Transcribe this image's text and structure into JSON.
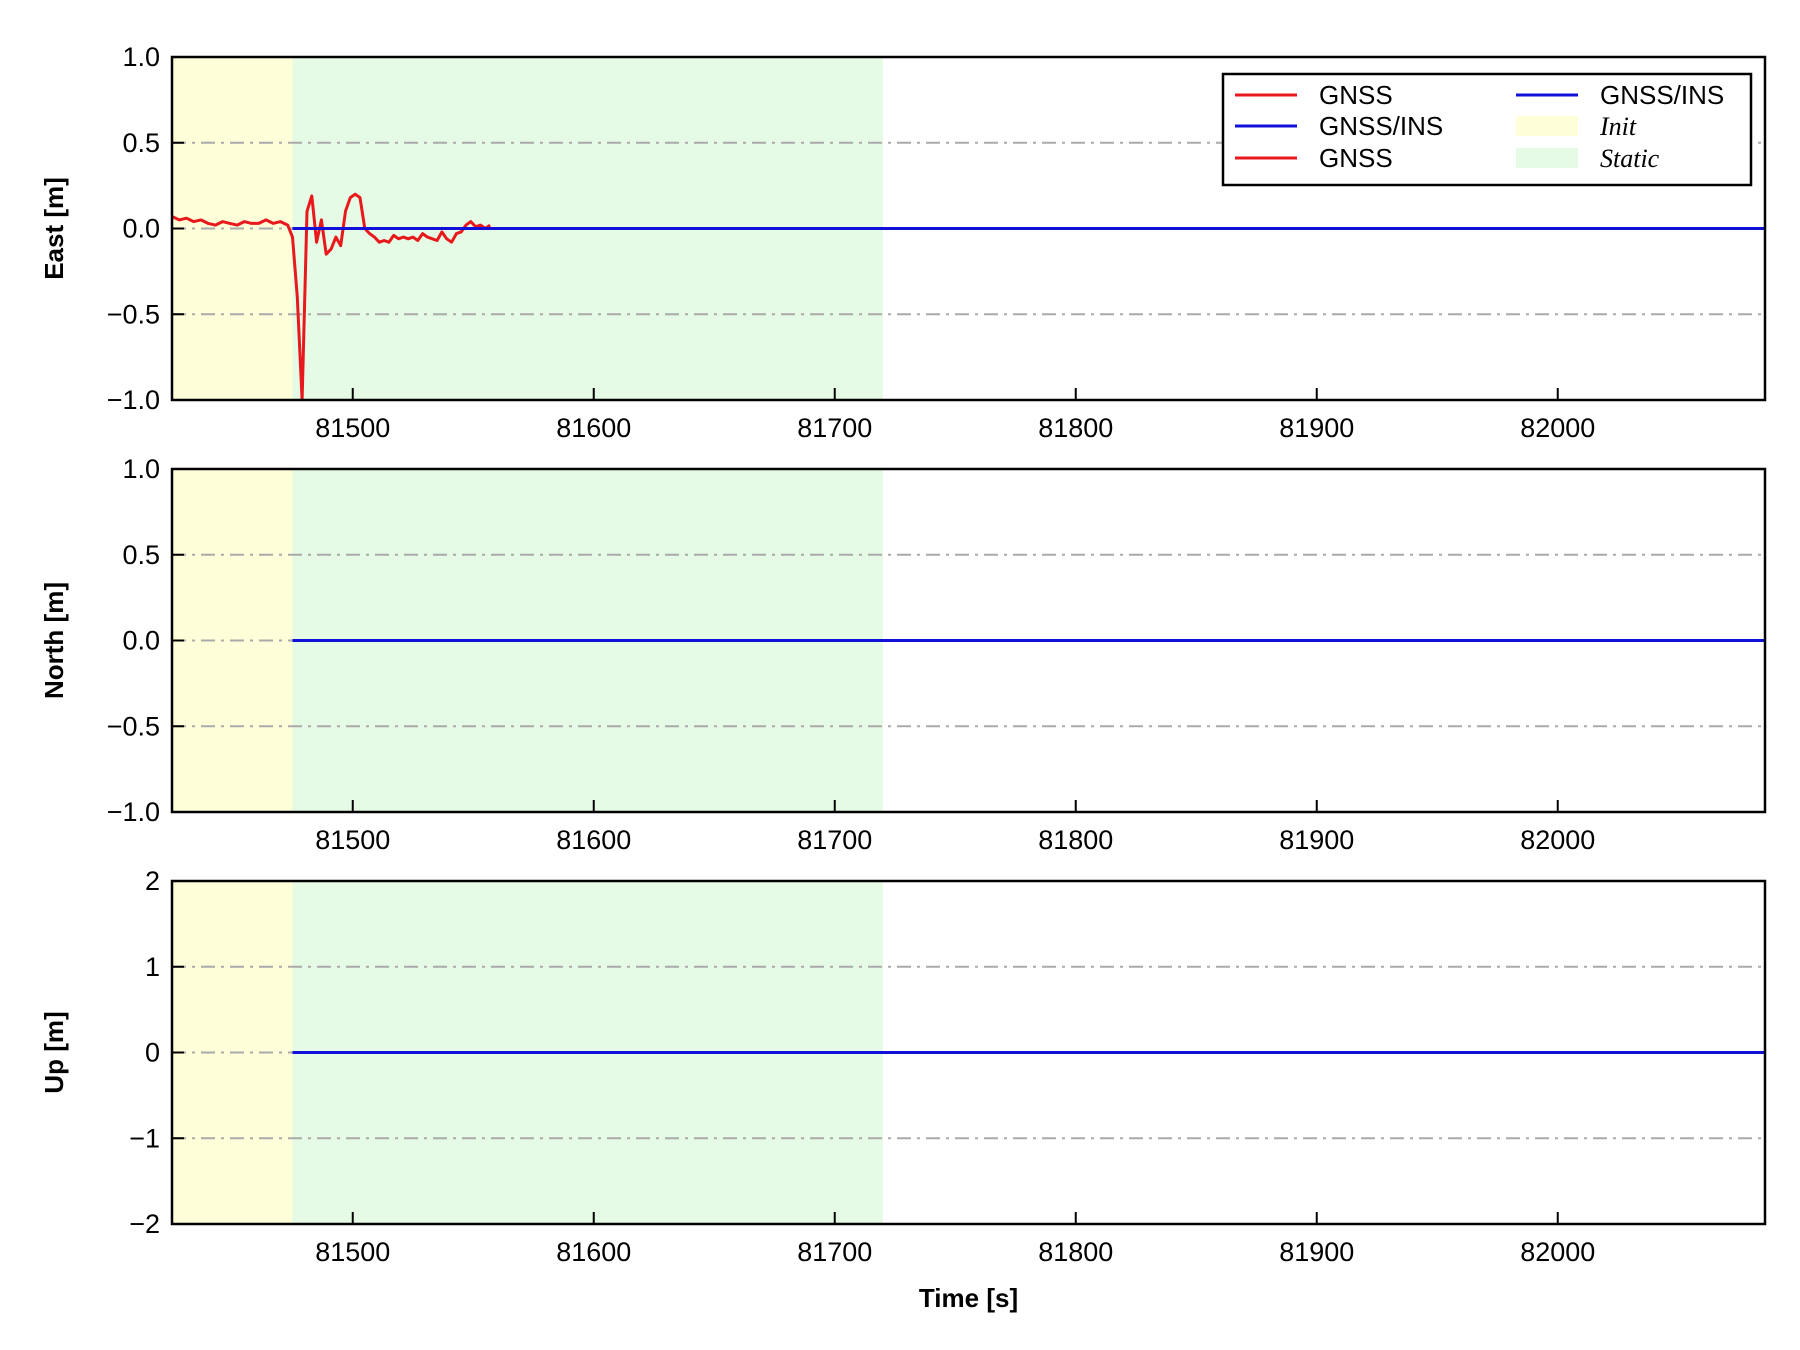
{
  "colors": {
    "gnss": "#e8191c",
    "gnss_ins": "#1010d8",
    "init_region": "#fefed9",
    "static_region": "#e6fbe6",
    "grid": "#aaaaaa",
    "axes": "#000000"
  },
  "legend": {
    "placement": "upper-right of top panel",
    "columns": 2,
    "entries": [
      {
        "label": "GNSS",
        "kind": "line",
        "color": "#e8191c",
        "style": "normal"
      },
      {
        "label": "GNSS/INS",
        "kind": "line",
        "color": "#1010d8",
        "style": "normal"
      },
      {
        "label": "GNSS",
        "kind": "line",
        "color": "#e8191c",
        "style": "normal"
      },
      {
        "label": "GNSS/INS",
        "kind": "line",
        "color": "#1010d8",
        "style": "normal"
      },
      {
        "label": "Init",
        "kind": "patch",
        "color": "#fefed9",
        "style": "italic"
      },
      {
        "label": "Static",
        "kind": "patch",
        "color": "#e6fbe6",
        "style": "italic"
      }
    ]
  },
  "chart_data": [
    {
      "type": "line",
      "ylabel": "East [m]",
      "xlabel": "",
      "xlim": [
        81425,
        82086
      ],
      "ylim": [
        -1.0,
        1.0
      ],
      "xticks": [
        81500,
        81600,
        81700,
        81800,
        81900,
        82000
      ],
      "xtick_labels": [
        "81500",
        "81600",
        "81700",
        "81800",
        "81900",
        "82000"
      ],
      "yticks": [
        -1.0,
        -0.5,
        0.0,
        0.5,
        1.0
      ],
      "ytick_labels": [
        "−1.0",
        "−0.5",
        "0.0",
        "0.5",
        "1.0"
      ],
      "grid_y": [
        -0.5,
        0.0,
        0.5
      ],
      "regions": [
        {
          "name": "Init",
          "x": [
            81425,
            81475
          ]
        },
        {
          "name": "Static",
          "x": [
            81475,
            81720
          ]
        }
      ],
      "series": [
        {
          "name": "GNSS",
          "color": "#e8191c",
          "x": [
            81425,
            81428,
            81431,
            81434,
            81437,
            81440,
            81443,
            81446,
            81449,
            81452,
            81455,
            81458,
            81461,
            81464,
            81467,
            81470,
            81473,
            81475,
            81477,
            81479,
            81481,
            81483,
            81485,
            81487,
            81489,
            81491,
            81493,
            81495,
            81497,
            81499,
            81501,
            81503,
            81505,
            81507,
            81509,
            81511,
            81513,
            81515,
            81517,
            81519,
            81521,
            81523,
            81525,
            81527,
            81529,
            81531,
            81533,
            81535,
            81537,
            81539,
            81541,
            81543,
            81545,
            81547,
            81549,
            81551,
            81553,
            81555,
            81557
          ],
          "y": [
            0.07,
            0.05,
            0.06,
            0.04,
            0.05,
            0.03,
            0.02,
            0.04,
            0.03,
            0.02,
            0.04,
            0.03,
            0.03,
            0.05,
            0.03,
            0.04,
            0.02,
            -0.05,
            -0.4,
            -1.0,
            0.1,
            0.19,
            -0.08,
            0.05,
            -0.15,
            -0.12,
            -0.05,
            -0.1,
            0.1,
            0.18,
            0.2,
            0.18,
            0.0,
            -0.03,
            -0.05,
            -0.08,
            -0.07,
            -0.08,
            -0.04,
            -0.06,
            -0.05,
            -0.06,
            -0.05,
            -0.07,
            -0.03,
            -0.05,
            -0.06,
            -0.07,
            -0.02,
            -0.06,
            -0.08,
            -0.03,
            -0.02,
            0.02,
            0.04,
            0.01,
            0.02,
            0.0,
            0.02
          ]
        },
        {
          "name": "GNSS/INS",
          "color": "#1010d8",
          "x": [
            81475,
            82086
          ],
          "y": [
            0.0,
            0.0
          ]
        }
      ]
    },
    {
      "type": "line",
      "ylabel": "North [m]",
      "xlabel": "",
      "xlim": [
        81425,
        82086
      ],
      "ylim": [
        -1.0,
        1.0
      ],
      "xticks": [
        81500,
        81600,
        81700,
        81800,
        81900,
        82000
      ],
      "xtick_labels": [
        "81500",
        "81600",
        "81700",
        "81800",
        "81900",
        "82000"
      ],
      "yticks": [
        -1.0,
        -0.5,
        0.0,
        0.5,
        1.0
      ],
      "ytick_labels": [
        "−1.0",
        "−0.5",
        "0.0",
        "0.5",
        "1.0"
      ],
      "grid_y": [
        -0.5,
        0.0,
        0.5
      ],
      "regions": [
        {
          "name": "Init",
          "x": [
            81425,
            81475
          ]
        },
        {
          "name": "Static",
          "x": [
            81475,
            81720
          ]
        }
      ],
      "series": [
        {
          "name": "GNSS/INS",
          "color": "#1010d8",
          "x": [
            81475,
            82086
          ],
          "y": [
            0.0,
            0.0
          ]
        }
      ]
    },
    {
      "type": "line",
      "ylabel": "Up [m]",
      "xlabel": "Time [s]",
      "xlim": [
        81425,
        82086
      ],
      "ylim": [
        -2,
        2
      ],
      "xticks": [
        81500,
        81600,
        81700,
        81800,
        81900,
        82000
      ],
      "xtick_labels": [
        "81500",
        "81600",
        "81700",
        "81800",
        "81900",
        "82000"
      ],
      "yticks": [
        -2,
        -1,
        0,
        1,
        2
      ],
      "ytick_labels": [
        "−2",
        "−1",
        "0",
        "1",
        "2"
      ],
      "grid_y": [
        -1,
        0,
        1
      ],
      "regions": [
        {
          "name": "Init",
          "x": [
            81425,
            81475
          ]
        },
        {
          "name": "Static",
          "x": [
            81475,
            81720
          ]
        }
      ],
      "series": [
        {
          "name": "GNSS/INS",
          "color": "#1010d8",
          "x": [
            81475,
            82086
          ],
          "y": [
            0.0,
            0.0
          ]
        }
      ]
    }
  ]
}
